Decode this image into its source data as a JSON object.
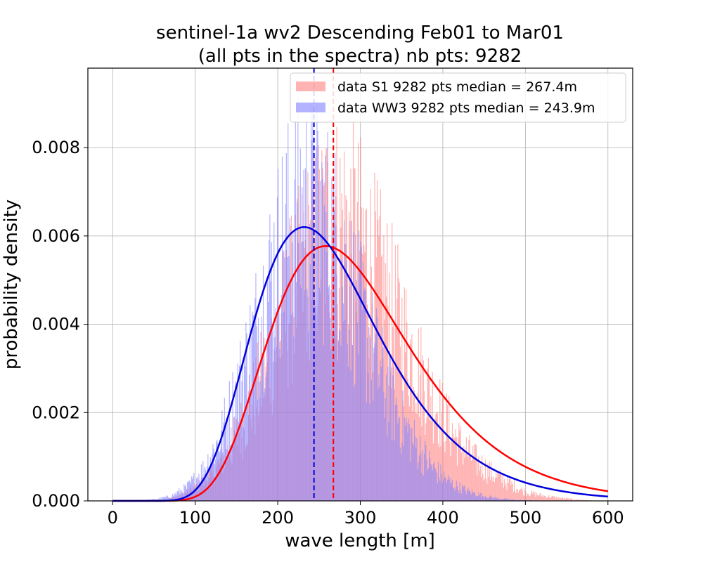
{
  "chart_data": {
    "type": "histogram",
    "title_line1": "sentinel-1a wv2 Descending Feb01 to Mar01",
    "title_line2": "(all pts in the spectra) nb pts: 9282",
    "xlabel": "wave length [m]",
    "ylabel": "probability density",
    "xlim": [
      -30,
      630
    ],
    "ylim": [
      0,
      0.0098
    ],
    "xticks": [
      0,
      100,
      200,
      300,
      400,
      500,
      600
    ],
    "xtick_labels": [
      "0",
      "100",
      "200",
      "300",
      "400",
      "500",
      "600"
    ],
    "yticks": [
      0,
      0.002,
      0.004,
      0.006,
      0.008
    ],
    "ytick_labels": [
      "0.000",
      "0.002",
      "0.004",
      "0.006",
      "0.008"
    ],
    "grid": true,
    "legend_position": "upper-right",
    "bin_range": [
      0,
      600
    ],
    "series": [
      {
        "name": "data S1 9282 pts median = 267.4m",
        "color": "#ff8080",
        "alpha": 0.6,
        "fit": {
          "kind": "lognormal-fit",
          "color": "#ff0000",
          "peak_x": 258,
          "peak_y": 0.00577
        },
        "median": 267.4,
        "median_color": "#ff0000",
        "histogram_envelope": [
          [
            0,
            0
          ],
          [
            60,
            2e-05
          ],
          [
            80,
            0.0001
          ],
          [
            100,
            0.0003
          ],
          [
            120,
            0.0006
          ],
          [
            140,
            0.0011
          ],
          [
            160,
            0.0018
          ],
          [
            180,
            0.0027
          ],
          [
            200,
            0.0037
          ],
          [
            220,
            0.0047
          ],
          [
            240,
            0.0056
          ],
          [
            260,
            0.0062
          ],
          [
            280,
            0.0062
          ],
          [
            300,
            0.0058
          ],
          [
            320,
            0.0051
          ],
          [
            340,
            0.0043
          ],
          [
            360,
            0.0034
          ],
          [
            380,
            0.0026
          ],
          [
            400,
            0.0019
          ],
          [
            420,
            0.0013
          ],
          [
            440,
            0.0009
          ],
          [
            460,
            0.0006
          ],
          [
            480,
            0.0004
          ],
          [
            500,
            0.0002
          ],
          [
            520,
            0.00012
          ],
          [
            540,
            7e-05
          ],
          [
            560,
            3e-05
          ],
          [
            580,
            1e-05
          ],
          [
            600,
            0
          ]
        ]
      },
      {
        "name": "data WW3 9282 pts median = 243.9m",
        "color": "#8080ff",
        "alpha": 0.6,
        "fit": {
          "kind": "lognormal-fit",
          "color": "#0000dd",
          "peak_x": 232,
          "peak_y": 0.0062
        },
        "median": 243.9,
        "median_color": "#0000dd",
        "histogram_envelope": [
          [
            0,
            0
          ],
          [
            50,
            3e-05
          ],
          [
            70,
            0.0001
          ],
          [
            90,
            0.0003
          ],
          [
            110,
            0.0007
          ],
          [
            130,
            0.0014
          ],
          [
            150,
            0.0024
          ],
          [
            170,
            0.0036
          ],
          [
            190,
            0.0049
          ],
          [
            210,
            0.006
          ],
          [
            230,
            0.0066
          ],
          [
            250,
            0.0064
          ],
          [
            270,
            0.0057
          ],
          [
            290,
            0.0047
          ],
          [
            310,
            0.0036
          ],
          [
            330,
            0.0026
          ],
          [
            350,
            0.0018
          ],
          [
            370,
            0.0012
          ],
          [
            390,
            0.0007
          ],
          [
            410,
            0.0004
          ],
          [
            430,
            0.00022
          ],
          [
            450,
            0.00011
          ],
          [
            470,
            5e-05
          ],
          [
            490,
            2e-05
          ],
          [
            520,
            5e-06
          ],
          [
            600,
            0
          ]
        ]
      }
    ]
  }
}
